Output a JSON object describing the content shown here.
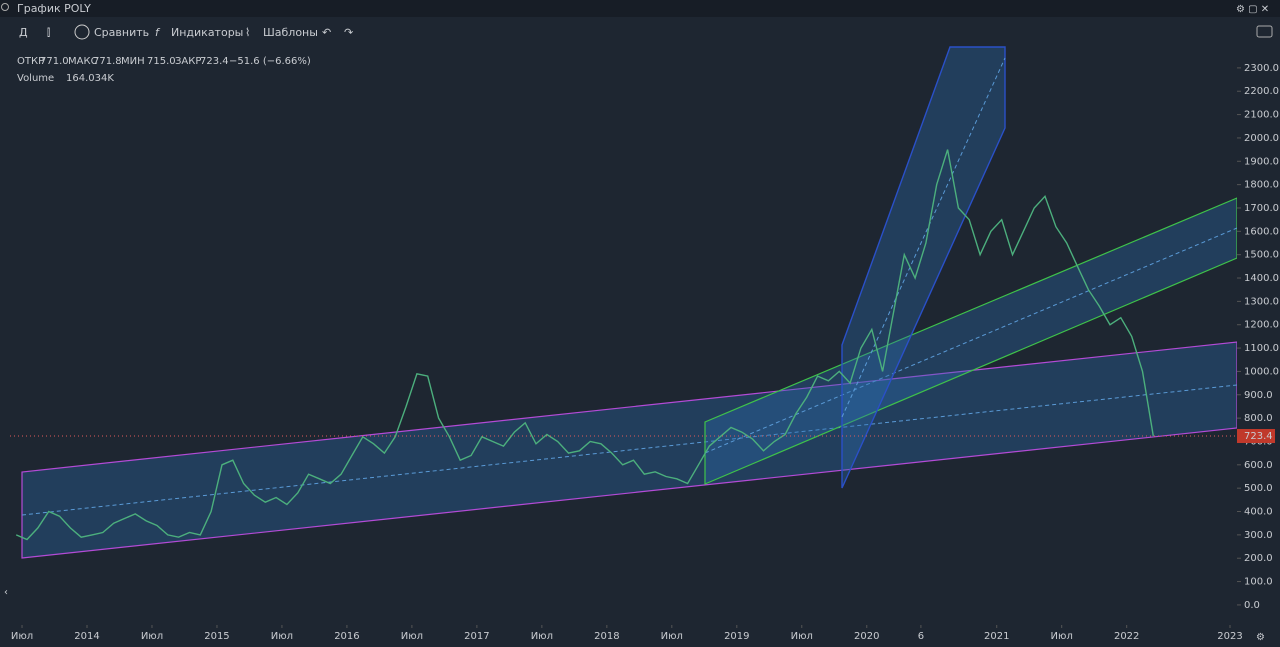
{
  "header": {
    "title": "График POLY"
  },
  "toolbar": {
    "interval": "Д",
    "compare": "Сравнить",
    "indicators": "Индикаторы",
    "templates": "Шаблоны"
  },
  "legend": {
    "open_label": "ОТКР",
    "open": "771.0",
    "high_label": "МАКС",
    "high": "771.8",
    "low_label": "МИН",
    "low": "715.0",
    "close_label": "ЗАКР",
    "close": "723.4",
    "change": "−51.6 (−6.66%)",
    "volume_label": "Volume",
    "volume": "164.034K"
  },
  "chart_data": {
    "type": "line",
    "color": "#4caf7d",
    "x": [
      "2013-06",
      "2013-07",
      "2013-08",
      "2013-09",
      "2013-10",
      "2013-11",
      "2013-12",
      "2014-01",
      "2014-02",
      "2014-03",
      "2014-04",
      "2014-05",
      "2014-06",
      "2014-07",
      "2014-08",
      "2014-09",
      "2014-10",
      "2014-11",
      "2014-12",
      "2015-01",
      "2015-02",
      "2015-03",
      "2015-04",
      "2015-05",
      "2015-06",
      "2015-07",
      "2015-08",
      "2015-09",
      "2015-10",
      "2015-11",
      "2015-12",
      "2016-01",
      "2016-02",
      "2016-03",
      "2016-04",
      "2016-05",
      "2016-06",
      "2016-07",
      "2016-08",
      "2016-09",
      "2016-10",
      "2016-11",
      "2016-12",
      "2017-01",
      "2017-02",
      "2017-03",
      "2017-04",
      "2017-05",
      "2017-06",
      "2017-07",
      "2017-08",
      "2017-09",
      "2017-10",
      "2017-11",
      "2017-12",
      "2018-01",
      "2018-02",
      "2018-03",
      "2018-04",
      "2018-05",
      "2018-06",
      "2018-07",
      "2018-08",
      "2018-09",
      "2018-10",
      "2018-11",
      "2018-12",
      "2019-01",
      "2019-02",
      "2019-03",
      "2019-04",
      "2019-05",
      "2019-06",
      "2019-07",
      "2019-08",
      "2019-09",
      "2019-10",
      "2019-11",
      "2019-12",
      "2020-01",
      "2020-02",
      "2020-03",
      "2020-04",
      "2020-05",
      "2020-06",
      "2020-07",
      "2020-08",
      "2020-09",
      "2020-10",
      "2020-11",
      "2020-12",
      "2021-01",
      "2021-02",
      "2021-03",
      "2021-04",
      "2021-05",
      "2021-06",
      "2021-07",
      "2021-08",
      "2021-09",
      "2021-10",
      "2021-11",
      "2021-12",
      "2022-01",
      "2022-02",
      "2022-03"
    ],
    "values": [
      300,
      280,
      330,
      400,
      380,
      330,
      290,
      300,
      310,
      350,
      370,
      390,
      360,
      340,
      300,
      290,
      310,
      300,
      400,
      600,
      620,
      520,
      470,
      440,
      460,
      430,
      480,
      560,
      540,
      520,
      560,
      640,
      720,
      690,
      650,
      720,
      850,
      990,
      980,
      800,
      720,
      620,
      640,
      720,
      700,
      680,
      740,
      780,
      690,
      730,
      700,
      650,
      660,
      700,
      690,
      650,
      600,
      620,
      560,
      570,
      550,
      540,
      520,
      600,
      680,
      720,
      760,
      740,
      710,
      660,
      700,
      730,
      820,
      890,
      980,
      960,
      1000,
      950,
      1100,
      1180,
      1000,
      1250,
      1500,
      1400,
      1550,
      1800,
      1950,
      1700,
      1650,
      1500,
      1600,
      1650,
      1500,
      1600,
      1700,
      1750,
      1620,
      1550,
      1450,
      1350,
      1280,
      1200,
      1230,
      1150,
      1000,
      723.4
    ],
    "ylim": [
      -86,
      2398
    ],
    "yticks": [
      {
        "value": 0,
        "label": "0.0"
      },
      {
        "value": 100,
        "label": "100.0"
      },
      {
        "value": 200,
        "label": "200.0"
      },
      {
        "value": 300,
        "label": "300.0"
      },
      {
        "value": 400,
        "label": "400.0"
      },
      {
        "value": 500,
        "label": "500.0"
      },
      {
        "value": 600,
        "label": "600.0"
      },
      {
        "value": 700,
        "label": "700.0"
      },
      {
        "value": 800,
        "label": "800.0"
      },
      {
        "value": 900,
        "label": "900.0"
      },
      {
        "value": 1000,
        "label": "1000.0"
      },
      {
        "value": 1100,
        "label": "1100.0"
      },
      {
        "value": 1200,
        "label": "1200.0"
      },
      {
        "value": 1300,
        "label": "1300.0"
      },
      {
        "value": 1400,
        "label": "1400.0"
      },
      {
        "value": 1500,
        "label": "1500.0"
      },
      {
        "value": 1600,
        "label": "1600.0"
      },
      {
        "value": 1700,
        "label": "1700.0"
      },
      {
        "value": 1800,
        "label": "1800.0"
      },
      {
        "value": 1900,
        "label": "1900.0"
      },
      {
        "value": 2000,
        "label": "2000.0"
      },
      {
        "value": 2100,
        "label": "2100.0"
      },
      {
        "value": 2200,
        "label": "2200.0"
      },
      {
        "value": 2300,
        "label": "2300.0"
      }
    ],
    "xticks": [
      {
        "value": "2013-07",
        "label": "Июл"
      },
      {
        "value": "2014-01",
        "label": "2014"
      },
      {
        "value": "2014-07",
        "label": "Июл"
      },
      {
        "value": "2015-01",
        "label": "2015"
      },
      {
        "value": "2015-07",
        "label": "Июл"
      },
      {
        "value": "2016-01",
        "label": "2016"
      },
      {
        "value": "2016-07",
        "label": "Июл"
      },
      {
        "value": "2017-01",
        "label": "2017"
      },
      {
        "value": "2017-07",
        "label": "Июл"
      },
      {
        "value": "2018-01",
        "label": "2018"
      },
      {
        "value": "2018-07",
        "label": "Июл"
      },
      {
        "value": "2019-01",
        "label": "2019"
      },
      {
        "value": "2019-07",
        "label": "Июл"
      },
      {
        "value": "2020-01",
        "label": "2020"
      },
      {
        "value": "2020-06",
        "label": "6"
      },
      {
        "value": "2021-01",
        "label": "2021"
      },
      {
        "value": "2021-07",
        "label": "Июл"
      },
      {
        "value": "2022-01",
        "label": "2022"
      },
      {
        "value": "2023-01",
        "label": "2023"
      }
    ]
  }
}
